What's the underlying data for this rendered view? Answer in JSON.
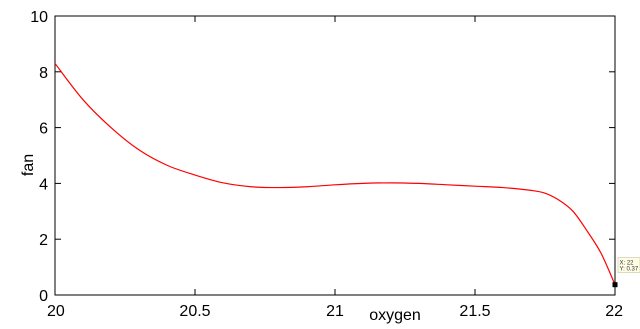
{
  "chart_data": {
    "type": "line",
    "xlabel": "oxygen",
    "ylabel": "fan",
    "xlim": [
      20,
      22
    ],
    "ylim": [
      0,
      10
    ],
    "grid": false,
    "xticks": [
      "20",
      "20.5",
      "21",
      "21.5",
      "22"
    ],
    "yticks": [
      "0",
      "2",
      "4",
      "6",
      "8",
      "10"
    ],
    "series": [
      {
        "color": "#ff0000",
        "x": [
          20.0,
          20.1,
          20.2,
          20.3,
          20.4,
          20.5,
          20.6,
          20.7,
          20.8,
          20.9,
          21.0,
          21.1,
          21.2,
          21.3,
          21.4,
          21.5,
          21.6,
          21.7,
          21.75,
          21.8,
          21.85,
          21.9,
          21.95,
          22.0
        ],
        "y": [
          8.3,
          7.0,
          6.0,
          5.2,
          4.65,
          4.3,
          4.02,
          3.88,
          3.85,
          3.88,
          3.95,
          4.0,
          4.02,
          4.0,
          3.95,
          3.9,
          3.85,
          3.75,
          3.65,
          3.4,
          3.0,
          2.3,
          1.5,
          0.37
        ]
      }
    ],
    "datatip": {
      "point": {
        "x": 22,
        "y": 0.37
      },
      "x_label": "X: 22",
      "y_label": "Y: 0.37"
    }
  }
}
